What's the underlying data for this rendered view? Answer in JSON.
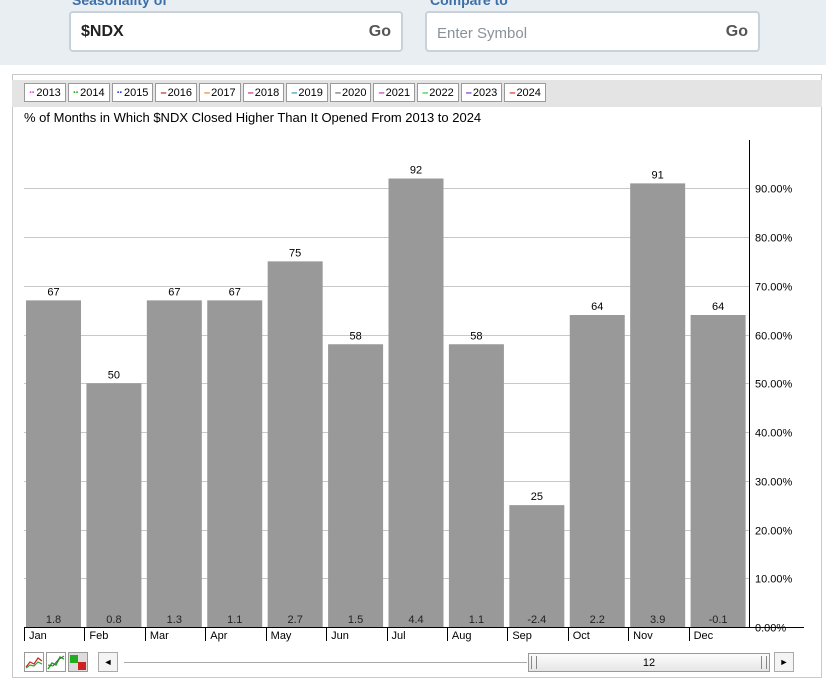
{
  "form": {
    "seasonality_label": "Seasonality of",
    "symbol_value": "$NDX",
    "go_label": "Go",
    "compare_label": "Compare to",
    "compare_placeholder": "Enter Symbol",
    "compare_go_label": "Go"
  },
  "legend": [
    {
      "label": "2013",
      "color": "#e040e0"
    },
    {
      "label": "2014",
      "color": "#22aa22"
    },
    {
      "label": "2015",
      "color": "#2244cc"
    },
    {
      "label": "2016",
      "color": "#aa2222"
    },
    {
      "label": "2017",
      "color": "#ee7722"
    },
    {
      "label": "2018",
      "color": "#cc2277"
    },
    {
      "label": "2019",
      "color": "#2299bb"
    },
    {
      "label": "2020",
      "color": "#666666"
    },
    {
      "label": "2021",
      "color": "#cc22cc"
    },
    {
      "label": "2022",
      "color": "#22cc22"
    },
    {
      "label": "2023",
      "color": "#7722cc"
    },
    {
      "label": "2024",
      "color": "#dd2222"
    }
  ],
  "chart_data": {
    "type": "bar",
    "title": "% of Months in Which $NDX Closed Higher Than It Opened From 2013 to 2024",
    "categories": [
      "Jan",
      "Feb",
      "Mar",
      "Apr",
      "May",
      "Jun",
      "Jul",
      "Aug",
      "Sep",
      "Oct",
      "Nov",
      "Dec"
    ],
    "values": [
      67,
      50,
      67,
      67,
      75,
      58,
      92,
      58,
      25,
      64,
      91,
      64
    ],
    "avg_change": [
      "1.8",
      "0.8",
      "1.3",
      "1.1",
      "2.7",
      "1.5",
      "4.4",
      "1.1",
      "-2.4",
      "2.2",
      "3.9",
      "-0.1"
    ],
    "y_ticks": [
      "0.00%",
      "10.00%",
      "20.00%",
      "30.00%",
      "40.00%",
      "50.00%",
      "60.00%",
      "70.00%",
      "80.00%",
      "90.00%"
    ],
    "ylim": [
      0,
      100
    ],
    "y_axis_side": "right",
    "bar_color": "#999999",
    "grid": true
  },
  "controls": {
    "scroll_value": "12",
    "left_arrow": "◄",
    "right_arrow": "►"
  }
}
